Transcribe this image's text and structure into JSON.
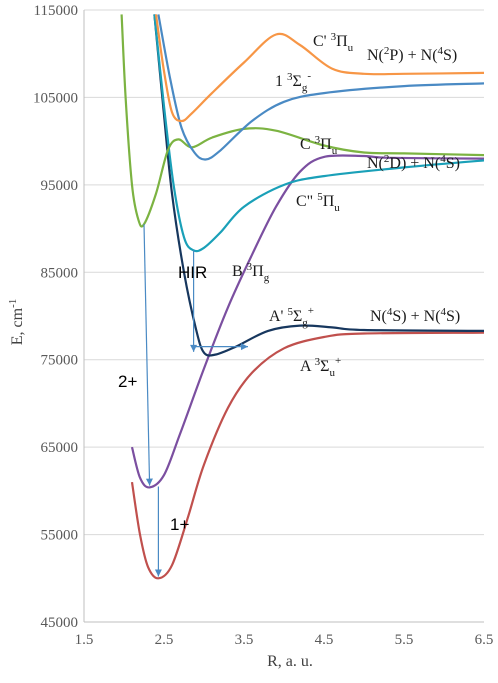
{
  "chart_data": {
    "type": "line",
    "title": "",
    "xlabel": "R, a. u.",
    "ylabel": "E, cm-1",
    "xlim": [
      1.5,
      6.5
    ],
    "ylim": [
      45000,
      115000
    ],
    "x_ticks": [
      "1.5",
      "2.5",
      "3.5",
      "4.5",
      "5.5",
      "6.5"
    ],
    "y_ticks": [
      "45000",
      "55000",
      "65000",
      "75000",
      "85000",
      "95000",
      "105000",
      "115000"
    ],
    "grid": "horizontal",
    "series": [
      {
        "color": "#c0504d",
        "points": [
          [
            2.1,
            61000
          ],
          [
            2.2,
            55000
          ],
          [
            2.3,
            51300
          ],
          [
            2.43,
            50000
          ],
          [
            2.6,
            51500
          ],
          [
            2.8,
            57000
          ],
          [
            3.0,
            63000
          ],
          [
            3.3,
            69500
          ],
          [
            3.6,
            73500
          ],
          [
            4.0,
            76300
          ],
          [
            4.5,
            77600
          ],
          [
            5.0,
            78000
          ],
          [
            6.5,
            78100
          ]
        ]
      },
      {
        "color": "#7b4fa0",
        "points": [
          [
            2.1,
            65000
          ],
          [
            2.2,
            61500
          ],
          [
            2.32,
            60400
          ],
          [
            2.5,
            61800
          ],
          [
            2.7,
            66500
          ],
          [
            3.0,
            74000
          ],
          [
            3.3,
            81000
          ],
          [
            3.6,
            87000
          ],
          [
            3.9,
            92500
          ],
          [
            4.2,
            96500
          ],
          [
            4.5,
            98200
          ],
          [
            5.0,
            98300
          ],
          [
            5.3,
            98100
          ],
          [
            6.5,
            98000
          ]
        ]
      },
      {
        "color": "#17375e",
        "points": [
          [
            2.38,
            114500
          ],
          [
            2.5,
            103000
          ],
          [
            2.6,
            94000
          ],
          [
            2.75,
            85000
          ],
          [
            2.9,
            78500
          ],
          [
            3.0,
            75800
          ],
          [
            3.15,
            75600
          ],
          [
            3.4,
            76500
          ],
          [
            3.8,
            78300
          ],
          [
            4.2,
            78900
          ],
          [
            4.6,
            78700
          ],
          [
            5.0,
            78400
          ],
          [
            6.5,
            78300
          ]
        ]
      },
      {
        "color": "#1aa0b8",
        "points": [
          [
            2.38,
            114500
          ],
          [
            2.5,
            104000
          ],
          [
            2.62,
            95000
          ],
          [
            2.75,
            89000
          ],
          [
            2.87,
            87500
          ],
          [
            3.0,
            87800
          ],
          [
            3.2,
            89500
          ],
          [
            3.5,
            92500
          ],
          [
            4.0,
            95000
          ],
          [
            4.5,
            96000
          ],
          [
            5.5,
            97000
          ],
          [
            6.5,
            97800
          ]
        ]
      },
      {
        "color": "#7cb342",
        "points": [
          [
            1.97,
            114500
          ],
          [
            2.02,
            105000
          ],
          [
            2.1,
            95000
          ],
          [
            2.18,
            91000
          ],
          [
            2.25,
            90500
          ],
          [
            2.4,
            94000
          ],
          [
            2.55,
            99000
          ],
          [
            2.68,
            100200
          ],
          [
            2.85,
            99300
          ],
          [
            3.1,
            100400
          ],
          [
            3.5,
            101400
          ],
          [
            3.9,
            101200
          ],
          [
            4.5,
            99500
          ],
          [
            5.0,
            98700
          ],
          [
            5.5,
            98600
          ],
          [
            6.5,
            98400
          ]
        ]
      },
      {
        "color": "#4a8ac4",
        "points": [
          [
            2.43,
            114500
          ],
          [
            2.58,
            107000
          ],
          [
            2.72,
            101500
          ],
          [
            2.88,
            98700
          ],
          [
            3.02,
            97900
          ],
          [
            3.2,
            98900
          ],
          [
            3.6,
            102300
          ],
          [
            4.0,
            104500
          ],
          [
            4.5,
            105500
          ],
          [
            5.5,
            106300
          ],
          [
            6.5,
            106600
          ]
        ]
      },
      {
        "color": "#f79646",
        "points": [
          [
            2.4,
            114500
          ],
          [
            2.5,
            108000
          ],
          [
            2.6,
            103300
          ],
          [
            2.72,
            102300
          ],
          [
            2.85,
            103200
          ],
          [
            3.1,
            105500
          ],
          [
            3.5,
            109000
          ],
          [
            3.9,
            112200
          ],
          [
            4.2,
            111000
          ],
          [
            4.6,
            108300
          ],
          [
            5.0,
            107700
          ],
          [
            5.5,
            107700
          ],
          [
            6.5,
            107800
          ]
        ]
      }
    ],
    "arrows": [
      {
        "label": "HIR",
        "color": "#4a8ac4",
        "from": [
          2.87,
          87500
        ],
        "to": [
          2.87,
          75900
        ]
      },
      {
        "color": "#4a8ac4",
        "from": [
          2.87,
          76500
        ],
        "to": [
          3.55,
          76500
        ]
      },
      {
        "label": "2+",
        "color": "#4a8ac4",
        "from": [
          2.25,
          90500
        ],
        "to": [
          2.32,
          60600
        ]
      },
      {
        "label": "1+",
        "color": "#4a8ac4",
        "from": [
          2.43,
          60500
        ],
        "to": [
          2.43,
          50200
        ]
      }
    ],
    "annotations": [
      {
        "text": "C'",
        "term": "Π",
        "spin": "3",
        "sub": "u",
        "sup2": ""
      },
      {
        "text": "N(²P) + N(⁴S)"
      },
      {
        "text": "1",
        "term": "Σ",
        "spin": "3",
        "sub": "g",
        "sup2": "-"
      },
      {
        "text": "C",
        "term": "Π",
        "spin": "3",
        "sub": "u",
        "sup2": ""
      },
      {
        "text": "N(²D) + N(⁴S)"
      },
      {
        "text": "C\"",
        "term": "Π",
        "spin": "5",
        "sub": "u",
        "sup2": ""
      },
      {
        "text": "B",
        "term": "Π",
        "spin": "3",
        "sub": "g",
        "sup2": ""
      },
      {
        "text": "A'",
        "term": "Σ",
        "spin": "5",
        "sub": "g",
        "sup2": "+"
      },
      {
        "text": "N(⁴S) + N(⁴S)"
      },
      {
        "text": "A",
        "term": "Σ",
        "spin": "3",
        "sub": "u",
        "sup2": "+"
      }
    ]
  }
}
